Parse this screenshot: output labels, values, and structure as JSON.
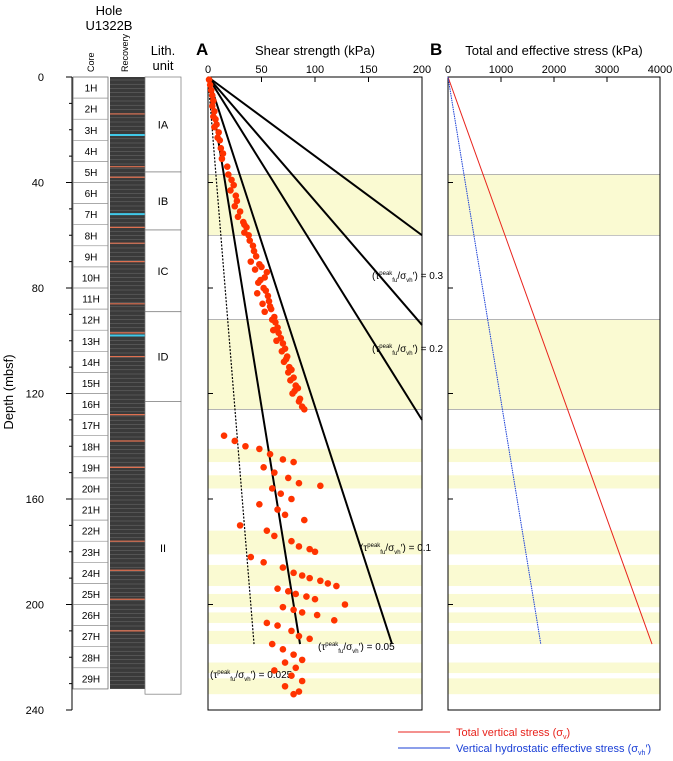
{
  "header": {
    "hole_label": "Hole",
    "hole_id": "U1322B",
    "core_label": "Core",
    "recovery_label": "Recovery",
    "lith_label_1": "Lith.",
    "lith_label_2": "unit",
    "depth_axis_label": "Depth (mbsf)",
    "panel_a_letter": "A",
    "panel_a_title": "Shear strength (kPa)",
    "panel_b_letter": "B",
    "panel_b_title": "Total and effective stress (kPa)"
  },
  "depth_ticks": [
    0,
    40,
    80,
    120,
    160,
    200,
    240
  ],
  "cores": [
    "1H",
    "2H",
    "3H",
    "4H",
    "5H",
    "6H",
    "7H",
    "8H",
    "9H",
    "10H",
    "11H",
    "12H",
    "13H",
    "14H",
    "15H",
    "16H",
    "17H",
    "18H",
    "19H",
    "20H",
    "21H",
    "22H",
    "23H",
    "24H",
    "25H",
    "26H",
    "27H",
    "28H",
    "29H"
  ],
  "lith_units": [
    {
      "name": "IA",
      "top": 0,
      "bottom": 36
    },
    {
      "name": "IB",
      "top": 36,
      "bottom": 58
    },
    {
      "name": "IC",
      "top": 58,
      "bottom": 89
    },
    {
      "name": "ID",
      "top": 89,
      "bottom": 123
    },
    {
      "name": "II",
      "top": 123,
      "bottom": 234
    }
  ],
  "colors": {
    "shade": "#fafad2",
    "points": "#ff3300",
    "total_stress": "#e8231c",
    "effective_stress": "#1a3fd6",
    "recovery": "#3a3a3a"
  },
  "legend": {
    "total": "Total vertical stress (σ",
    "total_sub": "v",
    "total_end": ")",
    "effective": "Vertical hydrostatic effective stress (σ",
    "effective_sub": "vh",
    "effective_end": "′)"
  },
  "chart_data": [
    {
      "type": "scatter",
      "panel": "A",
      "title": "Shear strength (kPa)",
      "xlabel": "Shear strength (kPa)",
      "ylabel": "Depth (mbsf)",
      "xlim": [
        0,
        200
      ],
      "ylim": [
        240,
        0
      ],
      "xticks": [
        0,
        50,
        100,
        150,
        200
      ],
      "shaded_intervals": [
        [
          37,
          60
        ],
        [
          92,
          126
        ],
        [
          141,
          146
        ],
        [
          151,
          156
        ],
        [
          172,
          181
        ],
        [
          185,
          193
        ],
        [
          196,
          201
        ],
        [
          203,
          207
        ],
        [
          210,
          215
        ],
        [
          222,
          226
        ],
        [
          228,
          234
        ]
      ],
      "reference_lines": [
        {
          "label": "(τfu peak/σvh′) = 0.025",
          "prefix": "(τ",
          "sup": "peak",
          "sub": "fu",
          "mid": "/σ",
          "mid_sub": "vh",
          "end": "′) = 0.025",
          "ratio": 0.025,
          "x_end": 43,
          "depth_end": 215
        },
        {
          "label": "(τfu peak/σvh′) = 0.05",
          "prefix": "(τ",
          "sup": "peak",
          "sub": "fu",
          "mid": "/σ",
          "mid_sub": "vh",
          "end": "′) = 0.05",
          "ratio": 0.05,
          "x_end": 86,
          "depth_end": 215
        },
        {
          "label": "(τfu peak/σvh′) = 0.1",
          "prefix": "(τ",
          "sup": "peak",
          "sub": "fu",
          "mid": "/σ",
          "mid_sub": "vh",
          "end": "′) = 0.1",
          "ratio": 0.1,
          "x_end": 172,
          "depth_end": 215
        },
        {
          "label": "(τfu peak/σvh′) = 0.2",
          "prefix": "(τ",
          "sup": "peak",
          "sub": "fu",
          "mid": "/σ",
          "mid_sub": "vh",
          "end": "′) = 0.2",
          "ratio": 0.2,
          "x_end": 200,
          "depth_end": 130
        },
        {
          "label": "(τfu peak/σvh′) = 0.3",
          "prefix": "(τ",
          "sup": "peak",
          "sub": "fu",
          "mid": "/σ",
          "mid_sub": "vh",
          "end": "′) = 0.3",
          "ratio": 0.3,
          "x_end": 200,
          "depth_end": 94
        },
        {
          "label": "",
          "ratio": 0.4,
          "x_end": 200,
          "depth_end": 60
        }
      ],
      "points": [
        [
          1,
          1
        ],
        [
          2,
          3
        ],
        [
          3,
          5
        ],
        [
          4,
          7
        ],
        [
          5,
          9
        ],
        [
          4,
          11
        ],
        [
          6,
          13
        ],
        [
          5,
          15
        ],
        [
          7,
          16
        ],
        [
          8,
          18
        ],
        [
          6,
          19
        ],
        [
          10,
          21
        ],
        [
          9,
          23
        ],
        [
          11,
          24
        ],
        [
          12,
          27
        ],
        [
          14,
          29
        ],
        [
          13,
          31
        ],
        [
          18,
          34
        ],
        [
          19,
          37
        ],
        [
          22,
          39
        ],
        [
          24,
          41
        ],
        [
          21,
          43
        ],
        [
          26,
          45
        ],
        [
          27,
          47
        ],
        [
          25,
          49
        ],
        [
          30,
          51
        ],
        [
          28,
          53
        ],
        [
          33,
          55
        ],
        [
          34,
          56
        ],
        [
          36,
          57
        ],
        [
          34,
          59
        ],
        [
          38,
          60
        ],
        [
          39,
          62
        ],
        [
          42,
          64
        ],
        [
          43,
          66
        ],
        [
          45,
          68
        ],
        [
          40,
          70
        ],
        [
          48,
          71
        ],
        [
          50,
          72
        ],
        [
          44,
          73
        ],
        [
          55,
          74
        ],
        [
          53,
          76
        ],
        [
          49,
          77
        ],
        [
          47,
          78
        ],
        [
          52,
          80
        ],
        [
          54,
          81
        ],
        [
          46,
          82
        ],
        [
          56,
          83
        ],
        [
          57,
          85
        ],
        [
          51,
          86
        ],
        [
          58,
          87
        ],
        [
          59,
          88
        ],
        [
          53,
          89
        ],
        [
          62,
          91
        ],
        [
          60,
          92
        ],
        [
          63,
          93
        ],
        [
          65,
          95
        ],
        [
          61,
          96
        ],
        [
          66,
          97
        ],
        [
          68,
          99
        ],
        [
          64,
          100
        ],
        [
          70,
          101
        ],
        [
          72,
          103
        ],
        [
          69,
          104
        ],
        [
          74,
          106
        ],
        [
          73,
          107
        ],
        [
          71,
          108
        ],
        [
          76,
          110
        ],
        [
          78,
          111
        ],
        [
          75,
          112
        ],
        [
          80,
          114
        ],
        [
          77,
          115
        ],
        [
          82,
          117
        ],
        [
          84,
          118
        ],
        [
          81,
          119
        ],
        [
          79,
          120
        ],
        [
          86,
          122
        ],
        [
          85,
          123
        ],
        [
          88,
          125
        ],
        [
          90,
          126
        ],
        [
          15,
          136
        ],
        [
          25,
          138
        ],
        [
          35,
          140
        ],
        [
          48,
          141
        ],
        [
          58,
          143
        ],
        [
          70,
          145
        ],
        [
          80,
          146
        ],
        [
          52,
          148
        ],
        [
          62,
          150
        ],
        [
          75,
          152
        ],
        [
          85,
          154
        ],
        [
          105,
          155
        ],
        [
          60,
          156
        ],
        [
          68,
          158
        ],
        [
          78,
          160
        ],
        [
          48,
          162
        ],
        [
          65,
          164
        ],
        [
          72,
          166
        ],
        [
          90,
          168
        ],
        [
          30,
          170
        ],
        [
          55,
          172
        ],
        [
          62,
          174
        ],
        [
          78,
          176
        ],
        [
          85,
          178
        ],
        [
          95,
          179
        ],
        [
          100,
          180
        ],
        [
          40,
          182
        ],
        [
          52,
          184
        ],
        [
          70,
          186
        ],
        [
          80,
          188
        ],
        [
          88,
          189
        ],
        [
          95,
          190
        ],
        [
          105,
          191
        ],
        [
          112,
          192
        ],
        [
          120,
          193
        ],
        [
          65,
          194
        ],
        [
          75,
          195
        ],
        [
          82,
          196
        ],
        [
          92,
          197
        ],
        [
          100,
          198
        ],
        [
          128,
          200
        ],
        [
          70,
          201
        ],
        [
          80,
          202
        ],
        [
          88,
          203
        ],
        [
          102,
          204
        ],
        [
          118,
          206
        ],
        [
          55,
          207
        ],
        [
          65,
          208
        ],
        [
          78,
          210
        ],
        [
          85,
          212
        ],
        [
          95,
          213
        ],
        [
          60,
          215
        ],
        [
          70,
          217
        ],
        [
          80,
          219
        ],
        [
          88,
          221
        ],
        [
          72,
          222
        ],
        [
          82,
          224
        ],
        [
          62,
          225
        ],
        [
          78,
          227
        ],
        [
          88,
          229
        ],
        [
          72,
          231
        ],
        [
          85,
          233
        ],
        [
          80,
          234
        ]
      ]
    },
    {
      "type": "line",
      "panel": "B",
      "title": "Total and effective stress (kPa)",
      "xlabel": "Total and effective stress (kPa)",
      "ylabel": "Depth (mbsf)",
      "xlim": [
        0,
        4000
      ],
      "ylim": [
        240,
        0
      ],
      "xticks": [
        0,
        1000,
        2000,
        3000,
        4000
      ],
      "series": [
        {
          "name": "Total vertical stress (σv)",
          "color": "#e8231c",
          "points": [
            [
              0,
              0
            ],
            [
              3850,
              215
            ]
          ]
        },
        {
          "name": "Vertical hydrostatic effective stress (σvh′)",
          "color": "#1a3fd6",
          "points": [
            [
              0,
              0
            ],
            [
              1750,
              215
            ]
          ]
        }
      ]
    }
  ]
}
